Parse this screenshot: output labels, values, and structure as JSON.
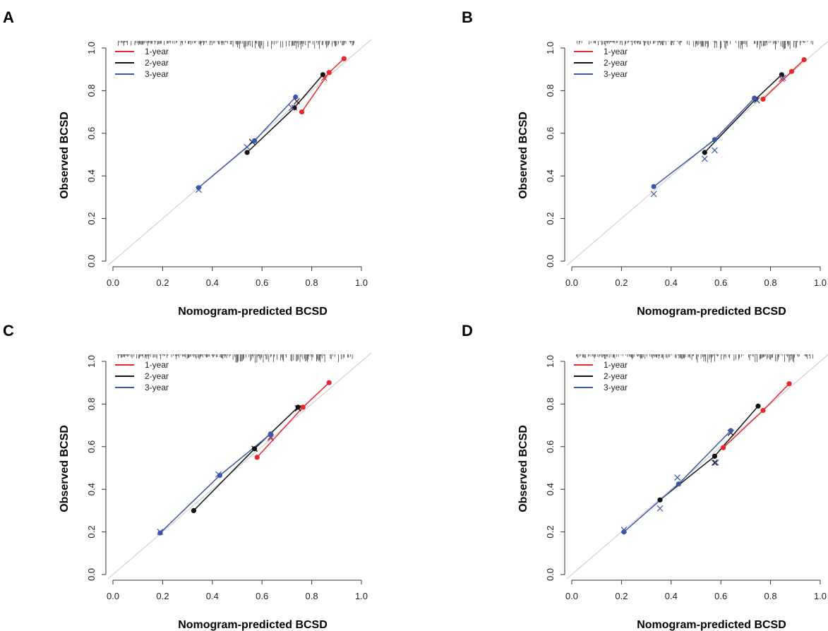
{
  "colors": {
    "one_year": "#e8262b",
    "two_year": "#111111",
    "three_year": "#3a56a8",
    "diagonal": "#c8c8c8",
    "axis": "#333333",
    "rug": "#222222"
  },
  "chart_data": [
    {
      "type": "scatter",
      "panel_label": "A",
      "xlabel": "Nomogram-predicted BCSD",
      "ylabel": "Observed BCSD",
      "xlim": [
        0,
        1
      ],
      "ylim": [
        0,
        1
      ],
      "xticks": [
        "0.0",
        "0.2",
        "0.4",
        "0.6",
        "0.8",
        "1.0"
      ],
      "yticks": [
        "0.0",
        "0.2",
        "0.4",
        "0.6",
        "0.8",
        "1.0"
      ],
      "legend": {
        "position": "top-left",
        "entries": [
          "1-year",
          "2-year",
          "3-year"
        ]
      },
      "reference_line": "y = x",
      "series": [
        {
          "name": "1-year",
          "color_key": "one_year",
          "points": [
            [
              0.76,
              0.7
            ],
            [
              0.87,
              0.885
            ],
            [
              0.93,
              0.95
            ]
          ],
          "cross": [
            [
              0.73,
              0.72
            ],
            [
              0.85,
              0.86
            ]
          ]
        },
        {
          "name": "2-year",
          "color_key": "two_year",
          "points": [
            [
              0.54,
              0.51
            ],
            [
              0.73,
              0.72
            ],
            [
              0.845,
              0.875
            ]
          ],
          "cross": [
            [
              0.56,
              0.56
            ],
            [
              0.74,
              0.75
            ]
          ]
        },
        {
          "name": "3-year",
          "color_key": "three_year",
          "points": [
            [
              0.345,
              0.345
            ],
            [
              0.57,
              0.565
            ],
            [
              0.735,
              0.77
            ]
          ],
          "cross": [
            [
              0.345,
              0.335
            ],
            [
              0.54,
              0.535
            ],
            [
              0.72,
              0.72
            ]
          ]
        }
      ]
    },
    {
      "type": "scatter",
      "panel_label": "B",
      "xlabel": "Nomogram-predicted BCSD",
      "ylabel": "Observed BCSD",
      "xlim": [
        0,
        1
      ],
      "ylim": [
        0,
        1
      ],
      "xticks": [
        "0.0",
        "0.2",
        "0.4",
        "0.6",
        "0.8",
        "1.0"
      ],
      "yticks": [
        "0.0",
        "0.2",
        "0.4",
        "0.6",
        "0.8",
        "1.0"
      ],
      "legend": {
        "position": "top-left",
        "entries": [
          "1-year",
          "2-year",
          "3-year"
        ]
      },
      "reference_line": "y = x",
      "series": [
        {
          "name": "1-year",
          "color_key": "one_year",
          "points": [
            [
              0.77,
              0.76
            ],
            [
              0.885,
              0.89
            ],
            [
              0.935,
              0.945
            ]
          ],
          "cross": [
            [
              0.745,
              0.755
            ],
            [
              0.845,
              0.855
            ]
          ]
        },
        {
          "name": "2-year",
          "color_key": "two_year",
          "points": [
            [
              0.535,
              0.51
            ],
            [
              0.74,
              0.76
            ],
            [
              0.845,
              0.875
            ]
          ],
          "cross": [
            [
              0.745,
              0.755
            ]
          ]
        },
        {
          "name": "3-year",
          "color_key": "three_year",
          "points": [
            [
              0.33,
              0.35
            ],
            [
              0.575,
              0.57
            ],
            [
              0.735,
              0.765
            ]
          ],
          "cross": [
            [
              0.33,
              0.315
            ],
            [
              0.535,
              0.48
            ],
            [
              0.575,
              0.52
            ],
            [
              0.745,
              0.755
            ],
            [
              0.85,
              0.86
            ]
          ]
        }
      ]
    },
    {
      "type": "scatter",
      "panel_label": "C",
      "xlabel": "Nomogram-predicted BCSD",
      "ylabel": "Observed BCSD",
      "xlim": [
        0,
        1
      ],
      "ylim": [
        0,
        1
      ],
      "xticks": [
        "0.0",
        "0.2",
        "0.4",
        "0.6",
        "0.8",
        "1.0"
      ],
      "yticks": [
        "0.0",
        "0.2",
        "0.4",
        "0.6",
        "0.8",
        "1.0"
      ],
      "legend": {
        "position": "top-left",
        "entries": [
          "1-year",
          "2-year",
          "3-year"
        ]
      },
      "reference_line": "y = x",
      "series": [
        {
          "name": "1-year",
          "color_key": "one_year",
          "points": [
            [
              0.58,
              0.55
            ],
            [
              0.765,
              0.785
            ],
            [
              0.87,
              0.9
            ]
          ],
          "cross": [
            [
              0.635,
              0.64
            ],
            [
              0.745,
              0.78
            ]
          ]
        },
        {
          "name": "2-year",
          "color_key": "two_year",
          "points": [
            [
              0.325,
              0.3
            ],
            [
              0.57,
              0.59
            ],
            [
              0.745,
              0.785
            ]
          ],
          "cross": [
            [
              0.57,
              0.59
            ],
            [
              0.745,
              0.78
            ]
          ]
        },
        {
          "name": "3-year",
          "color_key": "three_year",
          "points": [
            [
              0.19,
              0.195
            ],
            [
              0.43,
              0.465
            ],
            [
              0.635,
              0.66
            ]
          ],
          "cross": [
            [
              0.19,
              0.2
            ],
            [
              0.425,
              0.47
            ],
            [
              0.635,
              0.645
            ]
          ]
        }
      ]
    },
    {
      "type": "scatter",
      "panel_label": "D",
      "xlabel": "Nomogram-predicted BCSD",
      "ylabel": "Observed BCSD",
      "xlim": [
        0,
        1
      ],
      "ylim": [
        0,
        1
      ],
      "xticks": [
        "0.0",
        "0.2",
        "0.4",
        "0.6",
        "0.8",
        "1.0"
      ],
      "yticks": [
        "0.0",
        "0.2",
        "0.4",
        "0.6",
        "0.8",
        "1.0"
      ],
      "legend": {
        "position": "top-left",
        "entries": [
          "1-year",
          "2-year",
          "3-year"
        ]
      },
      "reference_line": "y = x",
      "series": [
        {
          "name": "1-year",
          "color_key": "one_year",
          "points": [
            [
              0.61,
              0.595
            ],
            [
              0.77,
              0.77
            ],
            [
              0.875,
              0.895
            ]
          ],
          "cross": [
            [
              0.64,
              0.665
            ]
          ]
        },
        {
          "name": "2-year",
          "color_key": "two_year",
          "points": [
            [
              0.355,
              0.35
            ],
            [
              0.575,
              0.555
            ],
            [
              0.75,
              0.79
            ]
          ],
          "cross": [
            [
              0.575,
              0.525
            ],
            [
              0.64,
              0.665
            ]
          ]
        },
        {
          "name": "3-year",
          "color_key": "three_year",
          "points": [
            [
              0.21,
              0.2
            ],
            [
              0.43,
              0.425
            ],
            [
              0.64,
              0.675
            ]
          ],
          "cross": [
            [
              0.21,
              0.21
            ],
            [
              0.355,
              0.31
            ],
            [
              0.425,
              0.455
            ],
            [
              0.58,
              0.525
            ]
          ]
        }
      ]
    }
  ]
}
